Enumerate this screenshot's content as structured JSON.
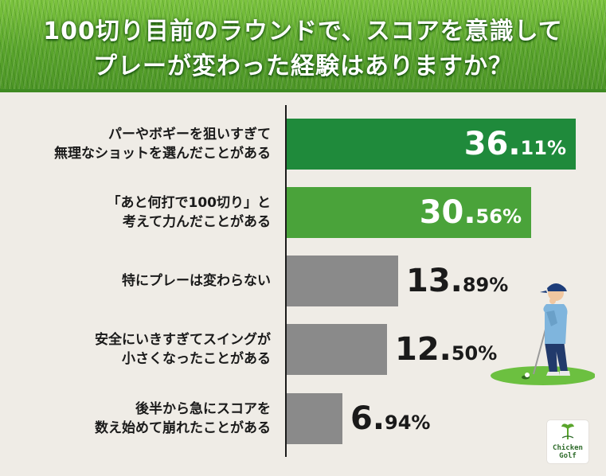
{
  "title": {
    "line1": "100切り目前のラウンドで、スコアを意識して",
    "line2": "プレーが変わった経験はありますか？"
  },
  "colors": {
    "bar_dark_green": "#1f8a3b",
    "bar_light_green": "#4aa33a",
    "bar_gray": "#8a8a8a",
    "background": "#efece6"
  },
  "chart_data": {
    "type": "bar",
    "orientation": "horizontal",
    "title": "100切り目前のラウンドで、スコアを意識してプレーが変わった経験はありますか？",
    "categories": [
      [
        "パーやボギーを狙いすぎて",
        "無理なショットを選んだことがある"
      ],
      [
        "「あと何打で100切り」と",
        "考えて力んだことがある"
      ],
      [
        "特にプレーは変わらない"
      ],
      [
        "安全にいきすぎてスイングが",
        "小さくなったことがある"
      ],
      [
        "後半から急にスコアを",
        "数え始めて崩れたことがある"
      ]
    ],
    "values": [
      36.11,
      30.56,
      13.89,
      12.5,
      6.94
    ],
    "value_labels": [
      {
        "int": "36.",
        "dec": "11%"
      },
      {
        "int": "30.",
        "dec": "56%"
      },
      {
        "int": "13.",
        "dec": "89%"
      },
      {
        "int": "12.",
        "dec": "50%"
      },
      {
        "int": "6.",
        "dec": "94%"
      }
    ],
    "bar_colors": [
      "#1f8a3b",
      "#4aa33a",
      "#8a8a8a",
      "#8a8a8a",
      "#8a8a8a"
    ],
    "label_inside": [
      true,
      true,
      false,
      false,
      false
    ],
    "xlim": [
      0,
      36.11
    ],
    "xlabel": "",
    "ylabel": "",
    "grid": false
  },
  "logo": {
    "line1": "Chicken",
    "line2": "Golf"
  }
}
